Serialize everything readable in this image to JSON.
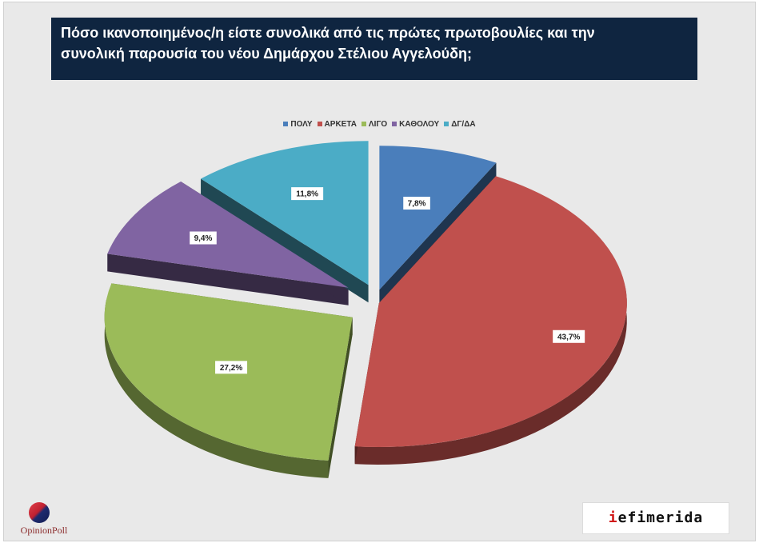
{
  "title_lines": [
    "Πόσο ικανοποιημένος/η είστε συνολικά από τις πρώτες πρωτοβουλίες και την",
    "συνολική παρουσία του νέου Δημάρχου Στέλιου Αγγελούδη;"
  ],
  "chart_data": {
    "type": "pie",
    "title": "Πόσο ικανοποιημένος/η είστε συνολικά από τις πρώτες πρωτοβουλίες και την συνολική παρουσία του νέου Δημάρχου Στέλιου Αγγελούδη;",
    "legend_position": "top",
    "exploded": true,
    "three_d": true,
    "slices": [
      {
        "name": "ΠΟΛΥ",
        "value": 7.8,
        "label": "7,8%",
        "color": "#4a7ebb"
      },
      {
        "name": "ΑΡΚΕΤΑ",
        "value": 43.7,
        "label": "43,7%",
        "color": "#c0504d"
      },
      {
        "name": "ΛΙΓΟ",
        "value": 27.2,
        "label": "27,2%",
        "color": "#9bbb59"
      },
      {
        "name": "ΚΑΘΟΛΟΥ",
        "value": 9.4,
        "label": "9,4%",
        "color": "#8064a2"
      },
      {
        "name": "ΔΓ/ΔΑ",
        "value": 11.8,
        "label": "11,8%",
        "color": "#4bacc6"
      }
    ]
  },
  "logos": {
    "opinion_poll": "OpinionPoll",
    "efimerida_prefix": "i",
    "efimerida_rest": "efimerida"
  }
}
